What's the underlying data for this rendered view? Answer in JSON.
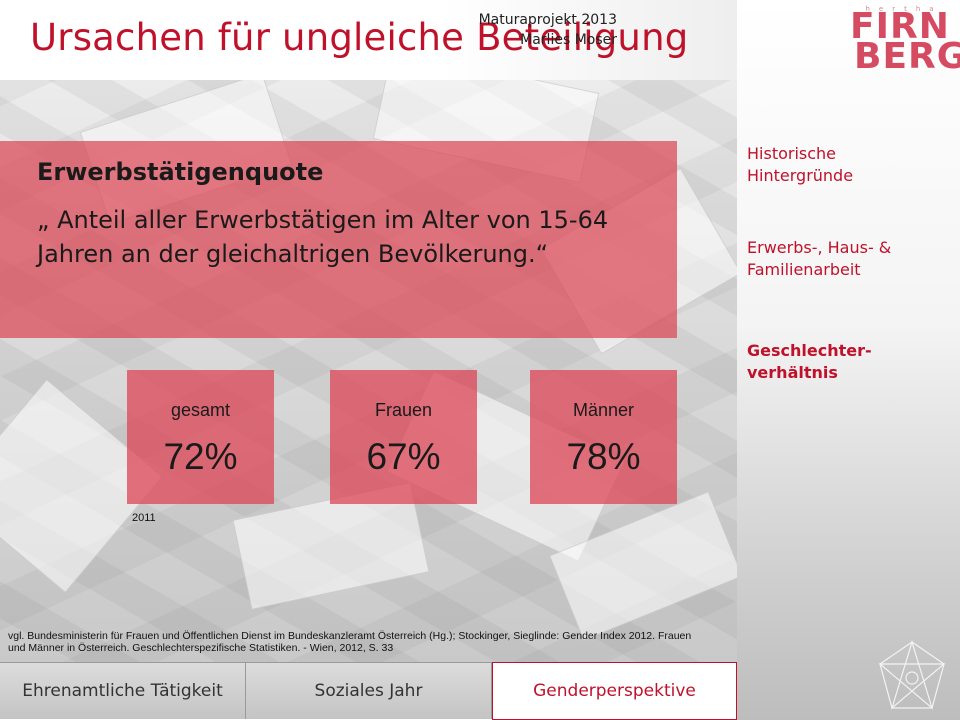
{
  "header": {
    "title": "Ursachen für ungleiche Beteiligung",
    "credit_line1": "Maturaprojekt 2013",
    "credit_line2": "Marlies Moser",
    "logo_small": "hertha",
    "logo_line1": "FIRN",
    "logo_line2": "BERG"
  },
  "definition": {
    "heading": "Erwerbstätigenquote",
    "text": "„ Anteil aller Erwerbstätigen im Alter von 15-64 Jahren an der gleichaltrigen Bevölkerung.“"
  },
  "stats": [
    {
      "label": "gesamt",
      "value": "72%"
    },
    {
      "label": "Frauen",
      "value": "67%"
    },
    {
      "label": "Männer",
      "value": "78%"
    }
  ],
  "year": "2011",
  "source": "vgl. Bundesministerin für Frauen und Öffentlichen Dienst im Bundeskanzleramt Österreich (Hg.); Stockinger, Sieglinde: Gender Index 2012. Frauen und Männer in Österreich. Geschlechterspezifische Statistiken. - Wien, 2012, S. 33",
  "side_nav": [
    {
      "label": "Historische Hintergründe",
      "active": false
    },
    {
      "label": "Erwerbs-, Haus- & Familienarbeit",
      "active": false
    },
    {
      "label": "Geschlechter-verhältnis",
      "active": true
    }
  ],
  "tabs": [
    {
      "label": "Ehrenamtliche Tätigkeit",
      "active": false
    },
    {
      "label": "Soziales Jahr",
      "active": false
    },
    {
      "label": "Genderperspektive",
      "active": true
    }
  ],
  "colors": {
    "accent": "#c0112b",
    "box": "#dc4655"
  },
  "icons": [
    "star-ornament-icon"
  ]
}
